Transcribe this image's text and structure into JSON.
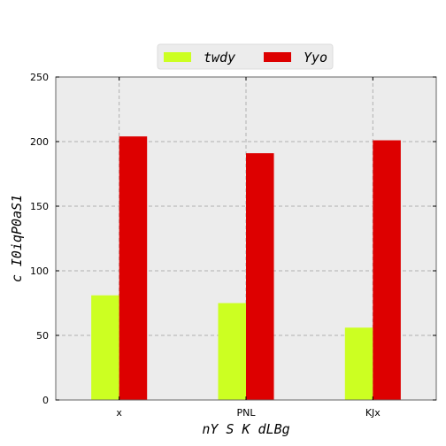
{
  "chart_data": {
    "type": "bar",
    "categories": [
      "x",
      "PNL",
      "KJx"
    ],
    "series": [
      {
        "name": "twdy",
        "values": [
          81,
          75,
          56
        ],
        "color": "#ccff22"
      },
      {
        "name": "Yyo",
        "values": [
          204,
          191,
          201
        ],
        "color": "#dd0000"
      }
    ],
    "xlabel": "nY S K dLBg",
    "ylabel": "c I0iqP0aS1",
    "ylim": [
      0,
      250
    ],
    "yticks": [
      0,
      50,
      100,
      150,
      200,
      250
    ],
    "grid": true,
    "legend_position": "top-center",
    "background": "#ececec"
  }
}
